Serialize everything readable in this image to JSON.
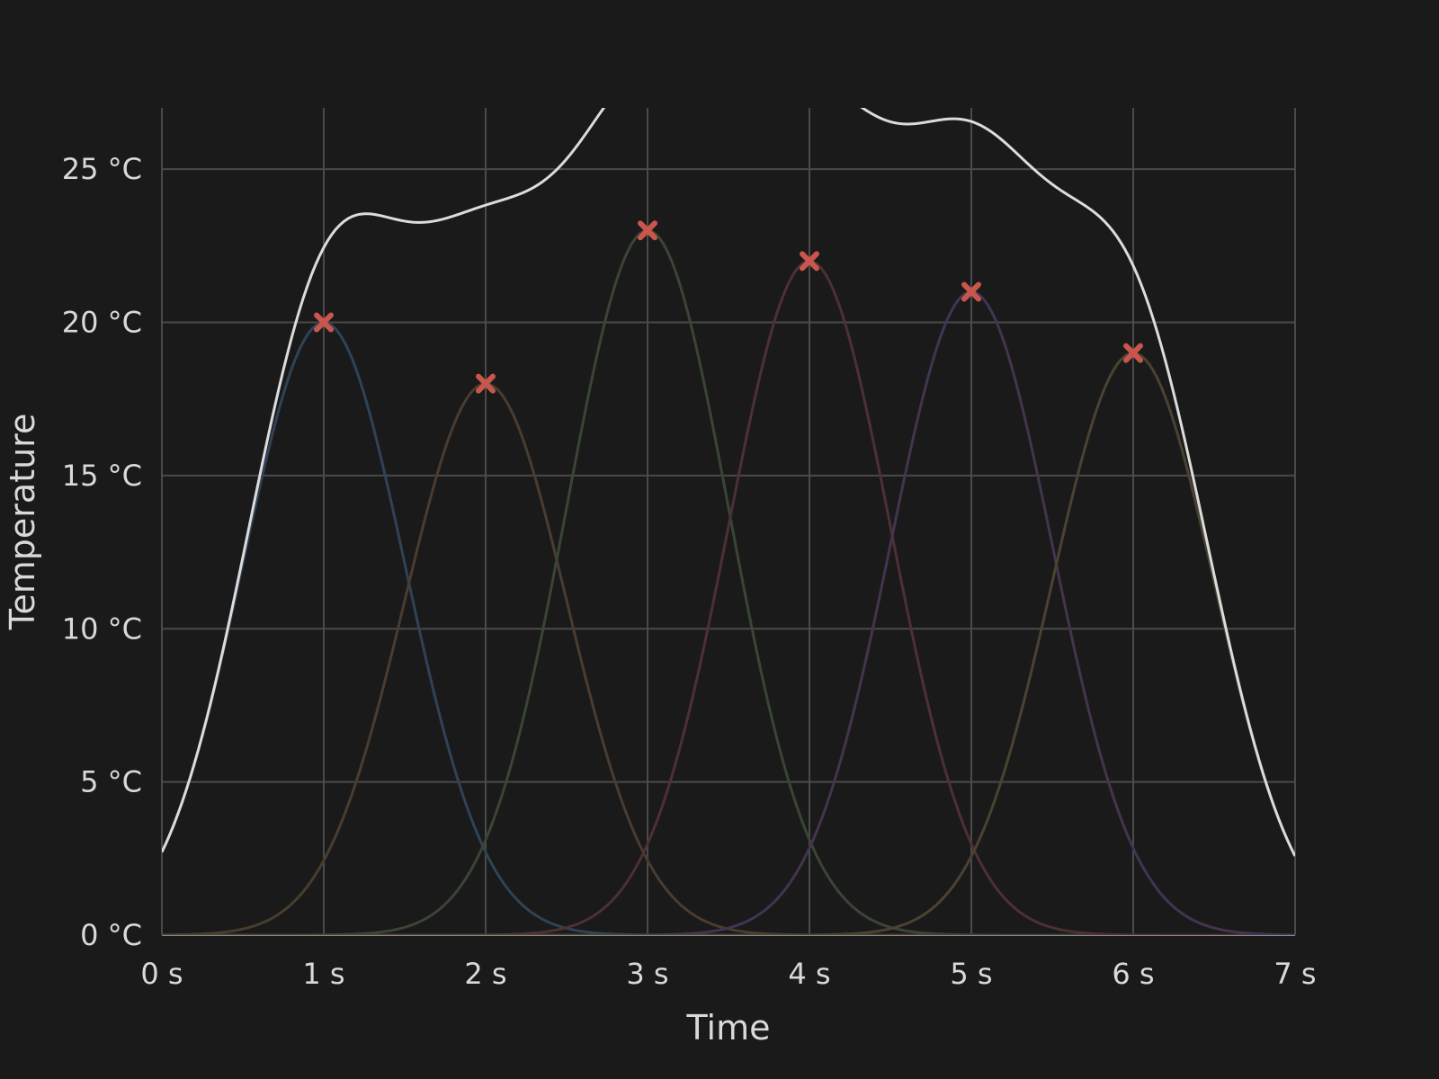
{
  "chart_data": {
    "type": "line",
    "xlabel": "Time",
    "ylabel": "Temperature",
    "xlim": [
      0,
      7
    ],
    "ylim": [
      0,
      27
    ],
    "grid": true,
    "x_ticks": [
      {
        "value": 0,
        "label": "0 s"
      },
      {
        "value": 1,
        "label": "1 s"
      },
      {
        "value": 2,
        "label": "2 s"
      },
      {
        "value": 3,
        "label": "3 s"
      },
      {
        "value": 4,
        "label": "4 s"
      },
      {
        "value": 5,
        "label": "5 s"
      },
      {
        "value": 6,
        "label": "6 s"
      },
      {
        "value": 7,
        "label": "7 s"
      }
    ],
    "y_ticks": [
      {
        "value": 0,
        "label": "0 °C"
      },
      {
        "value": 5,
        "label": "5 °C"
      },
      {
        "value": 10,
        "label": "10 °C"
      },
      {
        "value": 15,
        "label": "15 °C"
      },
      {
        "value": 20,
        "label": "20 °C"
      },
      {
        "value": 25,
        "label": "25 °C"
      }
    ],
    "peaks": [
      {
        "x": 1,
        "y": 20,
        "color": "#2f4356"
      },
      {
        "x": 2,
        "y": 18,
        "color": "#4a3c2f"
      },
      {
        "x": 3,
        "y": 23,
        "color": "#3a4535"
      },
      {
        "x": 4,
        "y": 22,
        "color": "#4d3034"
      },
      {
        "x": 5,
        "y": 21,
        "color": "#433450"
      },
      {
        "x": 6,
        "y": 19,
        "color": "#4b4331"
      }
    ],
    "gaussian_sigma": 0.5,
    "sum_line_color": "#dcdcdc",
    "marker_color": "#c9564c",
    "marker_shape": "x"
  }
}
